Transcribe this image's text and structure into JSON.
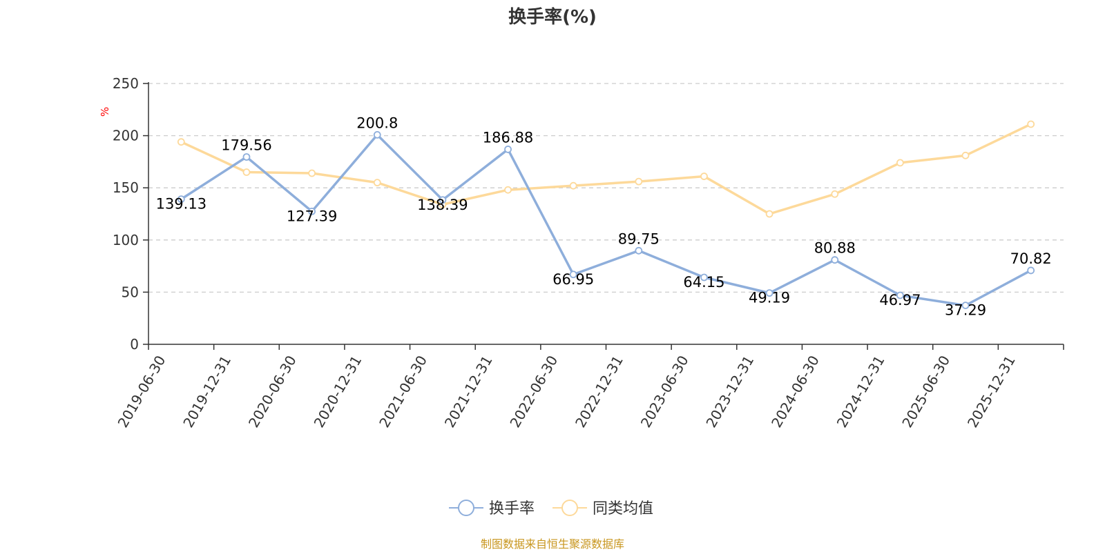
{
  "chart_data": {
    "type": "line",
    "title": "换手率(%)",
    "ylabel": "%",
    "ylim": [
      0,
      250
    ],
    "yticks": [
      0,
      50,
      100,
      150,
      200,
      250
    ],
    "grid": true,
    "legend_position": "bottom-center",
    "categories": [
      "2019-06-30",
      "2019-12-31",
      "2020-06-30",
      "2020-12-31",
      "2021-06-30",
      "2021-12-31",
      "2022-06-30",
      "2022-12-31",
      "2023-06-30",
      "2023-12-31",
      "2024-06-30",
      "2024-12-31",
      "2025-06-30",
      "2025-12-31"
    ],
    "series": [
      {
        "name": "换手率",
        "color": "#8eaedb",
        "values": [
          139.13,
          179.56,
          127.39,
          200.8,
          138.39,
          186.88,
          66.95,
          89.75,
          64.15,
          49.19,
          80.88,
          46.97,
          37.29,
          70.82
        ],
        "labels": [
          "139.13",
          "179.56",
          "127.39",
          "200.8",
          "138.39",
          "186.88",
          "66.95",
          "89.75",
          "64.15",
          "49.19",
          "80.88",
          "46.97",
          "37.29",
          "70.82"
        ]
      },
      {
        "name": "同类均值",
        "color": "#fdd99a",
        "values": [
          194,
          165,
          164,
          155,
          134,
          148,
          152,
          156,
          161,
          125,
          144,
          174,
          181,
          211
        ]
      }
    ]
  },
  "source": {
    "text": "制图数据来自恒生聚源数据库",
    "color": "#c8961e"
  }
}
